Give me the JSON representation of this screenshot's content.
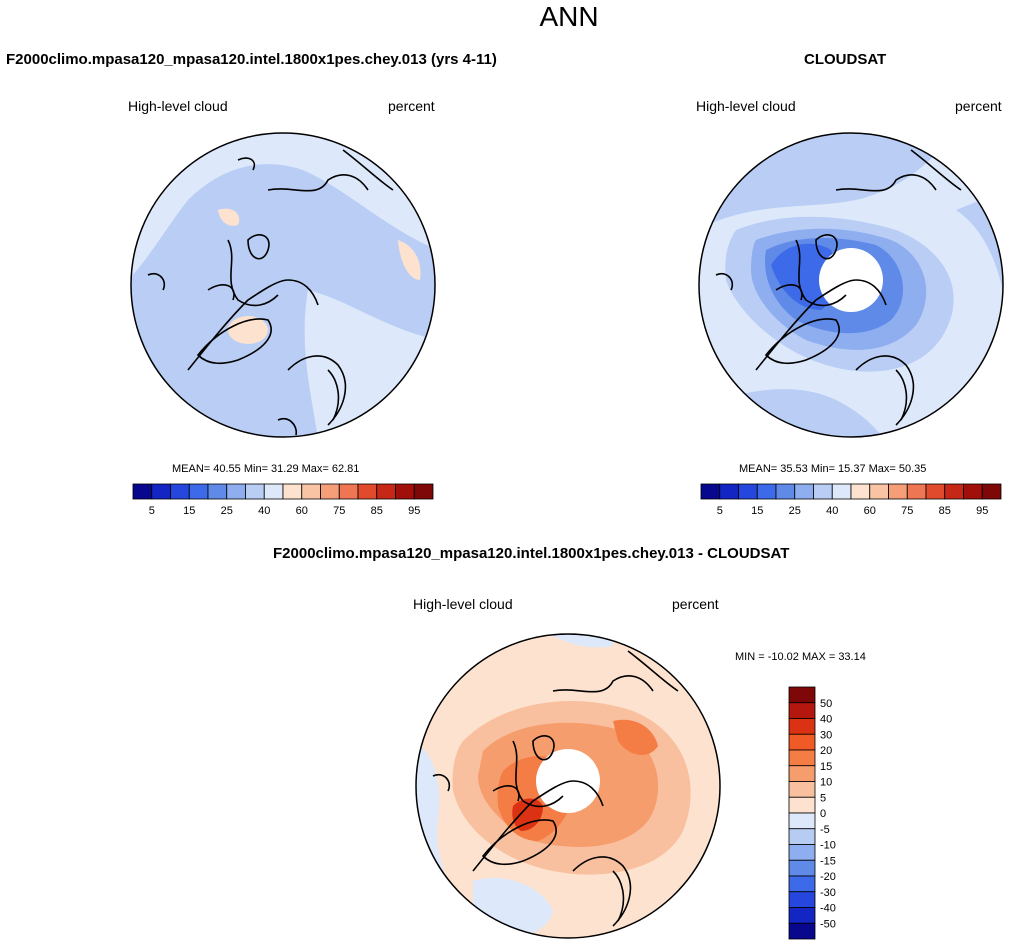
{
  "page": {
    "title": "ANN"
  },
  "panels": [
    {
      "id": "model",
      "case_label": "F2000climo.mpasa120_mpasa120.intel.1800x1pes.chey.013 (yrs 4-11)",
      "variable": "High-level cloud",
      "units": "percent",
      "stats_text": "MEAN=  40.55  Min=  31.29  Max=  62.81",
      "stats": {
        "mean": 40.55,
        "min": 31.29,
        "max": 62.81
      }
    },
    {
      "id": "obs",
      "case_label": "CLOUDSAT",
      "variable": "High-level cloud",
      "units": "percent",
      "stats_text": "MEAN=  35.53  Min=  15.37  Max=  50.35",
      "stats": {
        "mean": 35.53,
        "min": 15.37,
        "max": 50.35
      }
    },
    {
      "id": "diff",
      "case_label": "F2000climo.mpasa120_mpasa120.intel.1800x1pes.chey.013 - CLOUDSAT",
      "variable": "High-level cloud",
      "units": "percent",
      "stats_text": "MIN = -10.02 MAX =  33.14",
      "stats": {
        "min": -10.02,
        "max": 33.14
      }
    }
  ],
  "colorbars": {
    "sequential": {
      "colors": [
        "#08088f",
        "#1326c4",
        "#2547dd",
        "#3d6ae8",
        "#5f8ae8",
        "#8eaef0",
        "#b9cdf5",
        "#dde9fb",
        "#fde3cf",
        "#f9c4a3",
        "#f59e78",
        "#ef7652",
        "#e24a2d",
        "#c72716",
        "#a10f0b",
        "#7e0808"
      ],
      "labels": [
        "5",
        "15",
        "25",
        "40",
        "60",
        "75",
        "85",
        "95"
      ]
    },
    "diverging": {
      "colors": [
        "#7e0808",
        "#b3170e",
        "#dc3214",
        "#ef5a26",
        "#f47c45",
        "#f69d6e",
        "#f9c0a0",
        "#fde3cf",
        "#dde9fb",
        "#b7ccf3",
        "#8eaef0",
        "#5f8ae8",
        "#3d6ae8",
        "#2547dd",
        "#1326c4",
        "#08088f"
      ],
      "labels": [
        "50",
        "40",
        "30",
        "20",
        "15",
        "10",
        "5",
        "0",
        "-5",
        "-10",
        "-15",
        "-20",
        "-30",
        "-40",
        "-50"
      ]
    }
  },
  "chart_data": {
    "type": "heatmap",
    "projection": "north polar stereographic",
    "title": "ANN",
    "panels": [
      {
        "name": "model",
        "mean": 40.55,
        "min": 31.29,
        "max": 62.81,
        "contour_levels": [
          5,
          10,
          15,
          20,
          25,
          30,
          35,
          40,
          50,
          60,
          65,
          70,
          75,
          80,
          85,
          90,
          95
        ]
      },
      {
        "name": "CLOUDSAT",
        "mean": 35.53,
        "min": 15.37,
        "max": 50.35,
        "contour_levels": [
          5,
          10,
          15,
          20,
          25,
          30,
          35,
          40,
          50,
          60,
          65,
          70,
          75,
          80,
          85,
          90,
          95
        ]
      },
      {
        "name": "difference",
        "min": -10.02,
        "max": 33.14,
        "contour_levels": [
          -50,
          -40,
          -30,
          -20,
          -15,
          -10,
          -5,
          0,
          5,
          10,
          15,
          20,
          30,
          40,
          50
        ]
      }
    ]
  }
}
